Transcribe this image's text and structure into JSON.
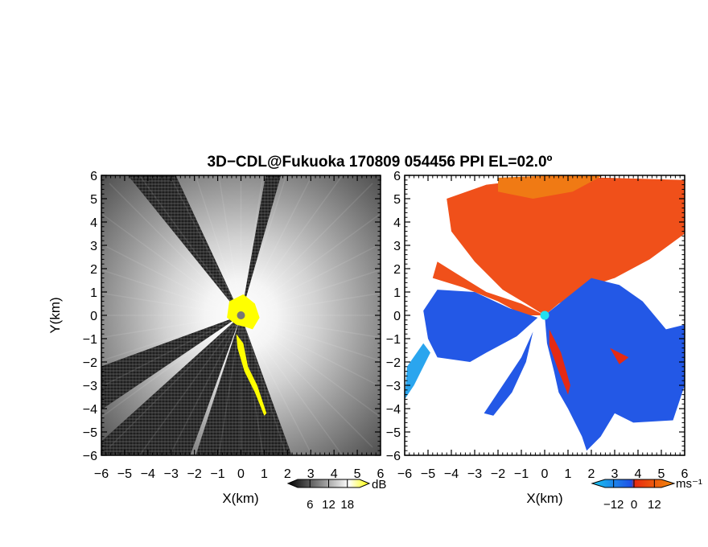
{
  "title": "3D−CDL@Fukuoka 170809 054456 PPI EL=02.0º",
  "chart_data": [
    {
      "type": "heatmap",
      "panel": "left",
      "quantity": "signal-to-noise ratio",
      "xlabel": "X(km)",
      "ylabel": "Y(km)",
      "xlim": [
        -6,
        6
      ],
      "ylim": [
        -6,
        6
      ],
      "x_ticks": [
        "−6",
        "−5",
        "−4",
        "−3",
        "−2",
        "−1",
        "0",
        "1",
        "2",
        "3",
        "4",
        "5",
        "6"
      ],
      "y_ticks": [
        "6",
        "5",
        "4",
        "3",
        "2",
        "1",
        "0",
        "−1",
        "−2",
        "−3",
        "−4",
        "−5",
        "−6"
      ],
      "radar_position": [
        0,
        0
      ],
      "blocked_sectors_deg": [
        [
          115,
          130
        ],
        [
          200,
          215
        ],
        [
          222,
          250
        ]
      ],
      "colorbar": {
        "ticks": [
          "6",
          "12",
          "18"
        ],
        "unit": "dB",
        "range": [
          0,
          24
        ],
        "colors": [
          "#000000",
          "#ffffff",
          "#ffff00"
        ]
      }
    },
    {
      "type": "heatmap",
      "panel": "right",
      "quantity": "Doppler velocity",
      "xlabel": "X(km)",
      "xlim": [
        -6,
        6
      ],
      "ylim": [
        -6,
        6
      ],
      "x_ticks": [
        "−6",
        "−5",
        "−4",
        "−3",
        "−2",
        "−1",
        "0",
        "1",
        "2",
        "3",
        "4",
        "5",
        "6"
      ],
      "y_ticks": [
        "6",
        "5",
        "4",
        "3",
        "2",
        "1",
        "0",
        "−1",
        "−2",
        "−3",
        "−4",
        "−5",
        "−6"
      ],
      "radar_position": [
        0,
        0
      ],
      "blocked_sectors_deg": [
        [
          115,
          130
        ],
        [
          200,
          215
        ],
        [
          222,
          250
        ]
      ],
      "colorbar": {
        "ticks": [
          "−12",
          "0",
          "12"
        ],
        "unit": "ms⁻¹",
        "range": [
          -18,
          18
        ],
        "colors": [
          "#19c7f0",
          "#1f4fe6",
          "#e82a10",
          "#f28c0c"
        ]
      }
    }
  ],
  "colors": {
    "marker_left": "#777777",
    "marker_right": "#22e0f0",
    "yellow": "#ffff00"
  }
}
